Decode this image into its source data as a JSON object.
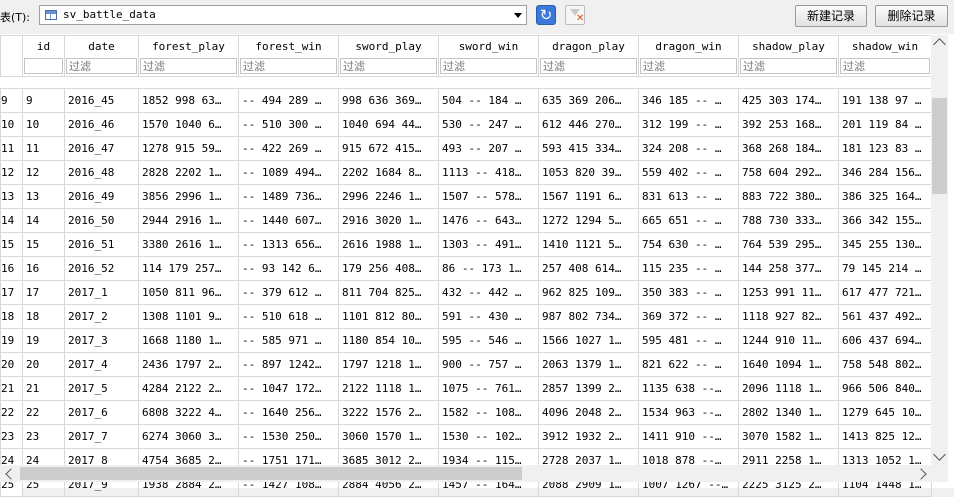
{
  "toolbar": {
    "table_label": "表(T):",
    "table_select_value": "sv_battle_data",
    "new_record_label": "新建记录",
    "delete_record_label": "删除记录",
    "refresh_icon": "refresh-icon",
    "clear_filter_icon": "clear-filter-icon"
  },
  "grid": {
    "columns": [
      "id",
      "date",
      "forest_play",
      "forest_win",
      "sword_play",
      "sword_win",
      "dragon_play",
      "dragon_win",
      "shadow_play",
      "shadow_win"
    ],
    "filter_placeholder": "过滤",
    "rows": [
      {
        "num": "9",
        "cells": [
          "9",
          "2016_45",
          "1852 998 63…",
          "-- 494 289 …",
          "998 636 369…",
          "504 -- 184 …",
          "635 369 206…",
          "346 185 -- …",
          "425 303 174…",
          "191 138 97 …"
        ]
      },
      {
        "num": "10",
        "cells": [
          "10",
          "2016_46",
          "1570 1040 6…",
          "-- 510 300 …",
          "1040 694 44…",
          "530 -- 247 …",
          "612 446 270…",
          "312 199 -- …",
          "392 253 168…",
          "201 119 84 …"
        ]
      },
      {
        "num": "11",
        "cells": [
          "11",
          "2016_47",
          "1278 915 59…",
          "-- 422 269 …",
          "915 672 415…",
          "493 -- 207 …",
          "593 415 334…",
          "324 208 -- …",
          "368 268 184…",
          "181 123 83 …"
        ]
      },
      {
        "num": "12",
        "cells": [
          "12",
          "2016_48",
          "2828 2202 1…",
          "-- 1089 494…",
          "2202 1684 8…",
          "1113 -- 418…",
          "1053 820 39…",
          "559 402 -- …",
          "758 604 292…",
          "346 284 156…"
        ]
      },
      {
        "num": "13",
        "cells": [
          "13",
          "2016_49",
          "3856 2996 1…",
          "-- 1489 736…",
          "2996 2246 1…",
          "1507 -- 578…",
          "1567 1191 6…",
          "831 613 -- …",
          "883 722 380…",
          "386 325 164…"
        ]
      },
      {
        "num": "14",
        "cells": [
          "14",
          "2016_50",
          "2944 2916 1…",
          "-- 1440 607…",
          "2916 3020 1…",
          "1476 -- 643…",
          "1272 1294 5…",
          "665 651 -- …",
          "788 730 333…",
          "366 342 155…"
        ]
      },
      {
        "num": "15",
        "cells": [
          "15",
          "2016_51",
          "3380 2616 1…",
          "-- 1313 656…",
          "2616 1988 1…",
          "1303 -- 491…",
          "1410 1121 5…",
          "754 630 -- …",
          "764 539 295…",
          "345 255 130…"
        ]
      },
      {
        "num": "16",
        "cells": [
          "16",
          "2016_52",
          "114 179 257…",
          "-- 93 142 6…",
          "179 256 408…",
          "86 -- 173 1…",
          "257 408 614…",
          "115 235 -- …",
          "144 258 377…",
          "79 145 214 …"
        ]
      },
      {
        "num": "17",
        "cells": [
          "17",
          "2017_1",
          "1050 811 96…",
          "-- 379 612 …",
          "811 704 825…",
          "432 -- 442 …",
          "962 825 109…",
          "350 383 -- …",
          "1253 991 11…",
          "617 477 721…"
        ]
      },
      {
        "num": "18",
        "cells": [
          "18",
          "2017_2",
          "1308 1101 9…",
          "-- 510 618 …",
          "1101 812 80…",
          "591 -- 430 …",
          "987 802 734…",
          "369 372 -- …",
          "1118 927 82…",
          "561 437 492…"
        ]
      },
      {
        "num": "19",
        "cells": [
          "19",
          "2017_3",
          "1668 1180 1…",
          "-- 585 971 …",
          "1180 854 10…",
          "595 -- 546 …",
          "1566 1027 1…",
          "595 481 -- …",
          "1244 910 11…",
          "606 437 694…"
        ]
      },
      {
        "num": "20",
        "cells": [
          "20",
          "2017_4",
          "2436 1797 2…",
          "-- 897 1242…",
          "1797 1218 1…",
          "900 -- 757 …",
          "2063 1379 1…",
          "821 622 -- …",
          "1640 1094 1…",
          "758 548 802…"
        ]
      },
      {
        "num": "21",
        "cells": [
          "21",
          "2017_5",
          "4284 2122 2…",
          "-- 1047 172…",
          "2122 1118 1…",
          "1075 -- 761…",
          "2857 1399 2…",
          "1135 638 --…",
          "2096 1118 1…",
          "966 506 840…"
        ]
      },
      {
        "num": "22",
        "cells": [
          "22",
          "2017_6",
          "6808 3222 4…",
          "-- 1640 256…",
          "3222 1576 2…",
          "1582 -- 108…",
          "4096 2048 2…",
          "1534 963 --…",
          "2802 1340 1…",
          "1279 645 10…"
        ]
      },
      {
        "num": "23",
        "cells": [
          "23",
          "2017_7",
          "6274 3060 3…",
          "-- 1530 250…",
          "3060 1570 1…",
          "1530 -- 102…",
          "3912 1932 2…",
          "1411 910 --…",
          "3070 1582 1…",
          "1413 825 12…"
        ]
      },
      {
        "num": "24",
        "cells": [
          "24",
          "2017_8",
          "4754 3685 2…",
          "-- 1751 171…",
          "3685 3012 2…",
          "1934 -- 115…",
          "2728 2037 1…",
          "1018 878 --…",
          "2911 2258 1…",
          "1313 1052 1…"
        ]
      },
      {
        "num": "25",
        "cells": [
          "25",
          "2017_9",
          "1938 2884 2…",
          "-- 1427 108…",
          "2884 4056 2…",
          "1457 -- 164…",
          "2088 2909 1…",
          "1007 1267 --…",
          "2225 3125 2…",
          "1104 1448 1…"
        ]
      }
    ]
  }
}
